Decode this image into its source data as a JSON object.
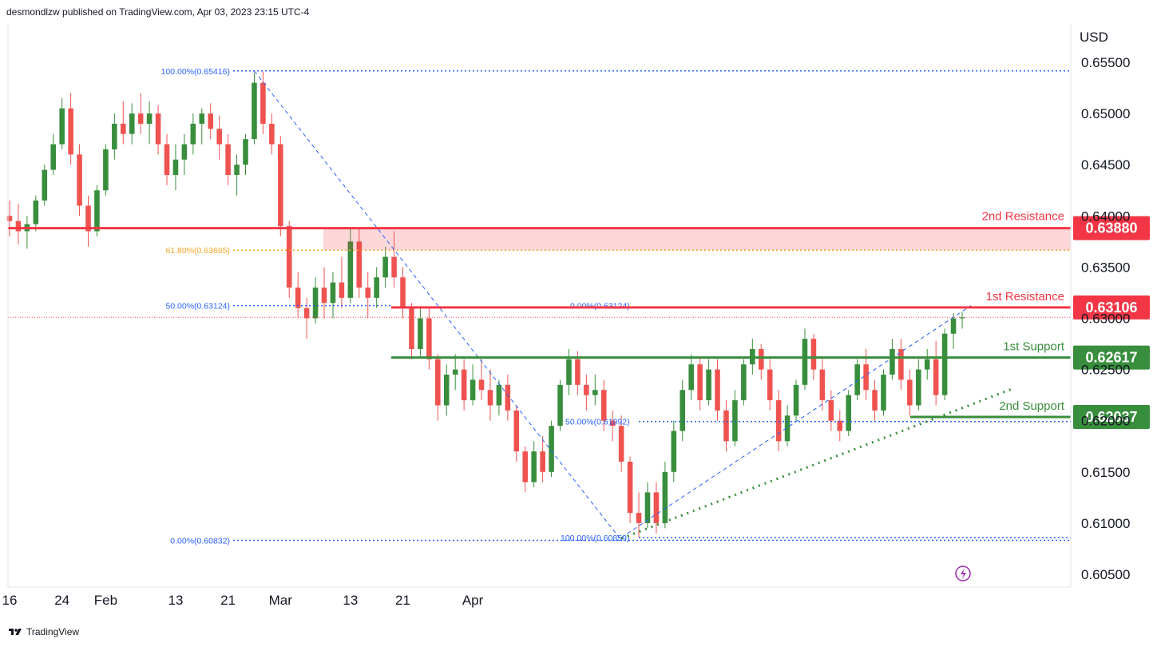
{
  "header": {
    "publisher": "desmondlzw published on TradingView.com, Apr 03, 2023 23:15 UTC-4"
  },
  "footer": {
    "brand": "TradingView"
  },
  "chart_data": {
    "type": "candlestick",
    "currency": "USD",
    "yticks": [
      "0.65500",
      "0.65000",
      "0.64500",
      "0.64000",
      "0.63500",
      "0.63000",
      "0.62500",
      "0.62000",
      "0.61500",
      "0.61000",
      "0.60500"
    ],
    "ytick_values": [
      0.655,
      0.65,
      0.645,
      0.64,
      0.635,
      0.63,
      0.625,
      0.62,
      0.615,
      0.61,
      0.605
    ],
    "xticks": [
      {
        "label": "16",
        "bar": 0
      },
      {
        "label": "24",
        "bar": 6
      },
      {
        "label": "Feb",
        "bar": 11
      },
      {
        "label": "13",
        "bar": 19
      },
      {
        "label": "21",
        "bar": 25
      },
      {
        "label": "Mar",
        "bar": 31
      },
      {
        "label": "13",
        "bar": 39
      },
      {
        "label": "21",
        "bar": 45
      },
      {
        "label": "Apr",
        "bar": 53
      }
    ],
    "levels": [
      {
        "name": "2nd Resistance",
        "value": 0.6388,
        "badge": "0.63880",
        "color": "#f23645"
      },
      {
        "name": "1st Resistance",
        "value": 0.63106,
        "badge": "0.63106",
        "color": "#f23645"
      },
      {
        "name": "1st Support",
        "value": 0.62617,
        "badge": "0.62617",
        "color": "#388e3c"
      },
      {
        "name": "2nd Support",
        "value": 0.62037,
        "badge": "0.62037",
        "color": "#388e3c"
      }
    ],
    "fib_labels": [
      {
        "text": "100.00%(0.65416)",
        "value": 0.65416,
        "color": "#2962ff"
      },
      {
        "text": "61.80%(0.63665)",
        "value": 0.63665,
        "color": "#f5a623"
      },
      {
        "text": "50.00%(0.63124)",
        "value": 0.63124,
        "color": "#2962ff"
      },
      {
        "text": "0.00%(0.60832)",
        "value": 0.60832,
        "color": "#2962ff"
      },
      {
        "text": "0.00%(0.63124)",
        "value": 0.63124,
        "color": "#2962ff"
      },
      {
        "text": "50.00%(0.61992)",
        "value": 0.61992,
        "color": "#2962ff"
      },
      {
        "text": "100.00%(0.60859)",
        "value": 0.60859,
        "color": "#2962ff"
      }
    ],
    "last_price": 0.6301,
    "colors": {
      "up": "#388e3c",
      "down": "#ef5350",
      "resistance": "#f23645",
      "support": "#388e3c",
      "fib": "#2962ff",
      "fib618": "#f5a623"
    },
    "candles": [
      [
        0.64,
        0.6415,
        0.638,
        0.6395
      ],
      [
        0.6395,
        0.6412,
        0.6372,
        0.6385
      ],
      [
        0.6385,
        0.64,
        0.6368,
        0.6392
      ],
      [
        0.6392,
        0.642,
        0.6385,
        0.6415
      ],
      [
        0.6415,
        0.645,
        0.641,
        0.6445
      ],
      [
        0.6445,
        0.648,
        0.644,
        0.647
      ],
      [
        0.647,
        0.6515,
        0.6465,
        0.6505
      ],
      [
        0.6505,
        0.652,
        0.645,
        0.646
      ],
      [
        0.646,
        0.647,
        0.64,
        0.641
      ],
      [
        0.641,
        0.642,
        0.637,
        0.6385
      ],
      [
        0.6385,
        0.643,
        0.638,
        0.6425
      ],
      [
        0.6425,
        0.647,
        0.642,
        0.6465
      ],
      [
        0.6465,
        0.65,
        0.6455,
        0.649
      ],
      [
        0.649,
        0.6512,
        0.647,
        0.648
      ],
      [
        0.648,
        0.651,
        0.647,
        0.65
      ],
      [
        0.65,
        0.652,
        0.648,
        0.649
      ],
      [
        0.649,
        0.6512,
        0.647,
        0.65
      ],
      [
        0.65,
        0.6508,
        0.646,
        0.647
      ],
      [
        0.647,
        0.648,
        0.643,
        0.644
      ],
      [
        0.644,
        0.647,
        0.6425,
        0.6455
      ],
      [
        0.6455,
        0.648,
        0.644,
        0.647
      ],
      [
        0.647,
        0.65,
        0.646,
        0.649
      ],
      [
        0.649,
        0.6505,
        0.647,
        0.65
      ],
      [
        0.65,
        0.651,
        0.6475,
        0.6485
      ],
      [
        0.6485,
        0.6498,
        0.6455,
        0.647
      ],
      [
        0.647,
        0.648,
        0.643,
        0.644
      ],
      [
        0.644,
        0.646,
        0.642,
        0.645
      ],
      [
        0.645,
        0.648,
        0.644,
        0.6475
      ],
      [
        0.6475,
        0.654,
        0.647,
        0.653
      ],
      [
        0.653,
        0.6541,
        0.648,
        0.649
      ],
      [
        0.649,
        0.65,
        0.646,
        0.647
      ],
      [
        0.647,
        0.6478,
        0.638,
        0.639
      ],
      [
        0.639,
        0.6395,
        0.632,
        0.633
      ],
      [
        0.633,
        0.6345,
        0.63,
        0.631
      ],
      [
        0.631,
        0.632,
        0.628,
        0.63
      ],
      [
        0.63,
        0.634,
        0.6295,
        0.633
      ],
      [
        0.633,
        0.635,
        0.63,
        0.6315
      ],
      [
        0.6315,
        0.6345,
        0.63,
        0.6335
      ],
      [
        0.6335,
        0.636,
        0.631,
        0.632
      ],
      [
        0.632,
        0.6388,
        0.6315,
        0.6375
      ],
      [
        0.6375,
        0.6388,
        0.632,
        0.633
      ],
      [
        0.633,
        0.6345,
        0.63,
        0.632
      ],
      [
        0.632,
        0.635,
        0.631,
        0.634
      ],
      [
        0.634,
        0.637,
        0.633,
        0.636
      ],
      [
        0.636,
        0.6385,
        0.633,
        0.634
      ],
      [
        0.634,
        0.635,
        0.63,
        0.631
      ],
      [
        0.631,
        0.6315,
        0.626,
        0.627
      ],
      [
        0.627,
        0.631,
        0.6262,
        0.63
      ],
      [
        0.63,
        0.631,
        0.625,
        0.626
      ],
      [
        0.626,
        0.6265,
        0.62,
        0.6215
      ],
      [
        0.6215,
        0.6255,
        0.6205,
        0.6245
      ],
      [
        0.6245,
        0.6265,
        0.623,
        0.625
      ],
      [
        0.625,
        0.626,
        0.621,
        0.622
      ],
      [
        0.622,
        0.6255,
        0.6215,
        0.624
      ],
      [
        0.624,
        0.626,
        0.622,
        0.623
      ],
      [
        0.623,
        0.625,
        0.62,
        0.6215
      ],
      [
        0.6215,
        0.624,
        0.6205,
        0.6235
      ],
      [
        0.6235,
        0.6245,
        0.62,
        0.621
      ],
      [
        0.621,
        0.6215,
        0.616,
        0.617
      ],
      [
        0.617,
        0.6175,
        0.613,
        0.614
      ],
      [
        0.614,
        0.618,
        0.6135,
        0.617
      ],
      [
        0.617,
        0.6185,
        0.614,
        0.615
      ],
      [
        0.615,
        0.62,
        0.6145,
        0.6195
      ],
      [
        0.6195,
        0.624,
        0.619,
        0.6235
      ],
      [
        0.6235,
        0.627,
        0.6225,
        0.626
      ],
      [
        0.626,
        0.6268,
        0.6225,
        0.6235
      ],
      [
        0.6235,
        0.6245,
        0.621,
        0.6225
      ],
      [
        0.6225,
        0.6245,
        0.6215,
        0.623
      ],
      [
        0.623,
        0.624,
        0.619,
        0.62
      ],
      [
        0.62,
        0.621,
        0.618,
        0.6195
      ],
      [
        0.6195,
        0.6205,
        0.615,
        0.616
      ],
      [
        0.616,
        0.6165,
        0.61,
        0.611
      ],
      [
        0.611,
        0.613,
        0.6086,
        0.61
      ],
      [
        0.61,
        0.614,
        0.6095,
        0.613
      ],
      [
        0.613,
        0.614,
        0.609,
        0.61
      ],
      [
        0.61,
        0.616,
        0.6095,
        0.615
      ],
      [
        0.615,
        0.62,
        0.614,
        0.619
      ],
      [
        0.619,
        0.624,
        0.618,
        0.623
      ],
      [
        0.623,
        0.6265,
        0.622,
        0.6255
      ],
      [
        0.6255,
        0.6262,
        0.621,
        0.622
      ],
      [
        0.622,
        0.626,
        0.6215,
        0.625
      ],
      [
        0.625,
        0.626,
        0.62,
        0.621
      ],
      [
        0.621,
        0.622,
        0.617,
        0.618
      ],
      [
        0.618,
        0.623,
        0.6175,
        0.622
      ],
      [
        0.622,
        0.626,
        0.6215,
        0.6255
      ],
      [
        0.6255,
        0.628,
        0.6245,
        0.627
      ],
      [
        0.627,
        0.6275,
        0.624,
        0.625
      ],
      [
        0.625,
        0.626,
        0.621,
        0.622
      ],
      [
        0.622,
        0.623,
        0.617,
        0.618
      ],
      [
        0.618,
        0.6215,
        0.6175,
        0.6205
      ],
      [
        0.6205,
        0.624,
        0.62,
        0.6235
      ],
      [
        0.6235,
        0.629,
        0.623,
        0.628
      ],
      [
        0.628,
        0.6285,
        0.624,
        0.625
      ],
      [
        0.625,
        0.626,
        0.621,
        0.622
      ],
      [
        0.622,
        0.623,
        0.619,
        0.62
      ],
      [
        0.62,
        0.621,
        0.618,
        0.619
      ],
      [
        0.619,
        0.623,
        0.6185,
        0.6225
      ],
      [
        0.6225,
        0.626,
        0.622,
        0.6255
      ],
      [
        0.6255,
        0.627,
        0.622,
        0.623
      ],
      [
        0.623,
        0.624,
        0.62,
        0.621
      ],
      [
        0.621,
        0.625,
        0.6205,
        0.6245
      ],
      [
        0.6245,
        0.628,
        0.624,
        0.627
      ],
      [
        0.627,
        0.628,
        0.623,
        0.624
      ],
      [
        0.624,
        0.625,
        0.6205,
        0.6215
      ],
      [
        0.6215,
        0.626,
        0.621,
        0.625
      ],
      [
        0.625,
        0.627,
        0.624,
        0.626
      ],
      [
        0.626,
        0.6278,
        0.6215,
        0.6225
      ],
      [
        0.6225,
        0.629,
        0.622,
        0.6285
      ],
      [
        0.6285,
        0.6305,
        0.627,
        0.63
      ],
      [
        0.63,
        0.6306,
        0.629,
        0.6301
      ]
    ]
  }
}
